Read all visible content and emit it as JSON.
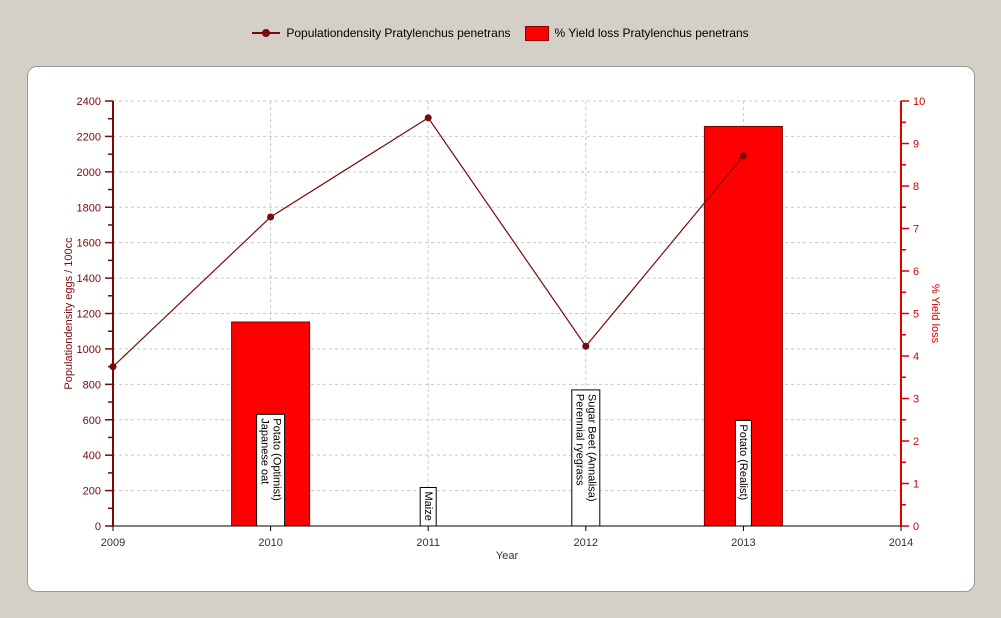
{
  "legend": {
    "line_label": "Populationdensity Pratylenchus penetrans",
    "bar_label": "% Yield loss Pratylenchus penetrans"
  },
  "chart_data": {
    "type": "bar",
    "xlabel": "Year",
    "ylabel": "Populationdensity eggs / 100cc",
    "y2label": "% Yield loss",
    "xlim": [
      2009,
      2014
    ],
    "x_ticks": [
      "2009",
      "2010",
      "2011",
      "2012",
      "2013",
      "2014"
    ],
    "ylim": [
      0,
      2400
    ],
    "y_ticks": [
      "0",
      "200",
      "400",
      "600",
      "800",
      "1000",
      "1200",
      "1400",
      "1600",
      "1800",
      "2000",
      "2200",
      "2400"
    ],
    "y2lim": [
      0,
      10
    ],
    "y2_ticks": [
      "0",
      "1",
      "2",
      "3",
      "4",
      "5",
      "6",
      "7",
      "8",
      "9",
      "10"
    ],
    "grid": true,
    "legend_position": "top",
    "series": [
      {
        "name": "Populationdensity Pratylenchus penetrans",
        "type": "line",
        "axis": "left",
        "color": "#7a0a0a",
        "x": [
          2009,
          2010,
          2011,
          2012,
          2013
        ],
        "values": [
          900,
          1745,
          2305,
          1015,
          2090
        ]
      },
      {
        "name": "% Yield loss Pratylenchus penetrans",
        "type": "bar",
        "axis": "right",
        "color": "#ff0000",
        "x": [
          2010,
          2011,
          2012,
          2013
        ],
        "values": [
          4.8,
          0,
          0,
          9.4
        ]
      }
    ],
    "crop_labels": [
      {
        "x": 2010,
        "lines": [
          "Potato (Optimist)",
          "Japanese oat"
        ]
      },
      {
        "x": 2011,
        "lines": [
          "Maize"
        ]
      },
      {
        "x": 2012,
        "lines": [
          "Sugar Beet (Annalisa)",
          "Perennial ryegrass"
        ]
      },
      {
        "x": 2013,
        "lines": [
          "Potato (Realist)"
        ]
      }
    ]
  }
}
